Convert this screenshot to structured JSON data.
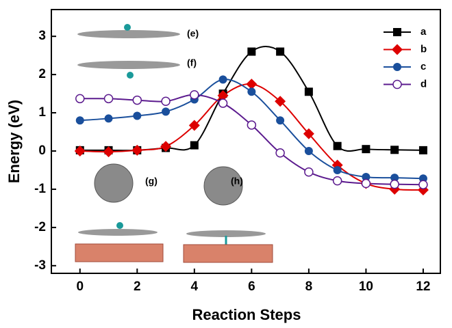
{
  "chart_data": {
    "type": "line",
    "x_label": "Reaction Steps",
    "y_label": "Energy (eV)",
    "x": [
      0,
      1,
      2,
      3,
      4,
      5,
      6,
      7,
      8,
      9,
      10,
      11,
      12
    ],
    "series": [
      {
        "name": "a",
        "color": "#000000",
        "marker": "square",
        "values": [
          0.02,
          0.02,
          0.02,
          0.08,
          0.15,
          1.5,
          2.6,
          2.6,
          1.55,
          0.13,
          0.05,
          0.03,
          0.02
        ]
      },
      {
        "name": "b",
        "color": "#dd0000",
        "marker": "diamond",
        "values": [
          0,
          -0.02,
          0.02,
          0.12,
          0.67,
          1.45,
          1.75,
          1.3,
          0.45,
          -0.37,
          -0.85,
          -1.0,
          -1.02
        ]
      },
      {
        "name": "c",
        "color": "#1a4f9c",
        "marker": "circle",
        "values": [
          0.8,
          0.85,
          0.92,
          1.03,
          1.35,
          1.87,
          1.55,
          0.8,
          0,
          -0.5,
          -0.68,
          -0.7,
          -0.72
        ]
      },
      {
        "name": "d",
        "color": "#5b1a8e",
        "marker": "open-circle",
        "values": [
          1.37,
          1.37,
          1.33,
          1.3,
          1.47,
          1.25,
          0.68,
          -0.05,
          -0.55,
          -0.78,
          -0.85,
          -0.87,
          -0.88
        ]
      }
    ],
    "xlim": [
      -1,
      12.6
    ],
    "ylim": [
      -3.2,
      3.7
    ],
    "xticks": [
      0,
      2,
      4,
      6,
      8,
      10,
      12
    ],
    "yticks": [
      -3,
      -2,
      -1,
      0,
      1,
      2,
      3
    ],
    "legend": "upper right",
    "annotations": [
      "(e)",
      "(f)",
      "(g)",
      "(h)"
    ]
  }
}
